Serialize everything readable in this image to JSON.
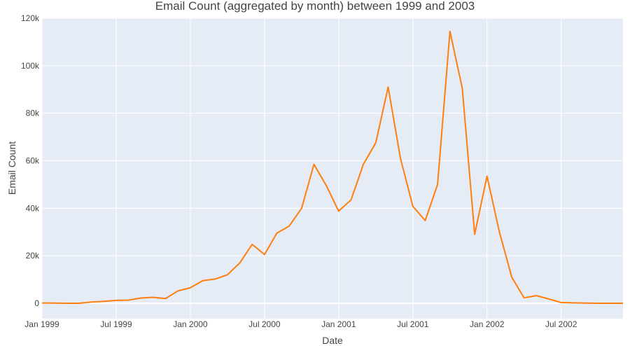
{
  "chart_data": {
    "type": "line",
    "title": "Email Count (aggregated by month) between 1999 and 2003",
    "xlabel": "Date",
    "ylabel": "Email Count",
    "xlim": [
      "1999-01",
      "2002-12"
    ],
    "ylim": [
      -6500,
      120000
    ],
    "x_ticks": [
      "Jan 1999",
      "Jul 1999",
      "Jan 2000",
      "Jul 2000",
      "Jan 2001",
      "Jul 2001",
      "Jan 2002",
      "Jul 2002"
    ],
    "y_ticks": [
      "0",
      "20k",
      "40k",
      "60k",
      "80k",
      "100k",
      "120k"
    ],
    "grid": true,
    "legend": "none",
    "colors": {
      "plot_bg": "#e5ecf6",
      "line": "#ff7f0e",
      "grid": "#ffffff"
    },
    "series": [
      {
        "x": [
          "1999-01",
          "1999-02",
          "1999-03",
          "1999-04",
          "1999-05",
          "1999-06",
          "1999-07",
          "1999-08",
          "1999-09",
          "1999-10",
          "1999-11",
          "1999-12",
          "2000-01",
          "2000-02",
          "2000-03",
          "2000-04",
          "2000-05",
          "2000-06",
          "2000-07",
          "2000-08",
          "2000-09",
          "2000-10",
          "2000-11",
          "2000-12",
          "2001-01",
          "2001-02",
          "2001-03",
          "2001-04",
          "2001-05",
          "2001-06",
          "2001-07",
          "2001-08",
          "2001-09",
          "2001-10",
          "2001-11",
          "2001-12",
          "2002-01",
          "2002-02",
          "2002-03",
          "2002-04",
          "2002-05",
          "2002-06",
          "2002-07",
          "2002-08",
          "2002-09",
          "2002-10",
          "2002-11",
          "2002-12"
        ],
        "values": [
          100,
          50,
          0,
          0,
          500,
          800,
          1200,
          1300,
          2200,
          2500,
          2000,
          5200,
          6500,
          9500,
          10200,
          12000,
          17000,
          24800,
          20500,
          29500,
          32500,
          40000,
          58500,
          49500,
          38800,
          43500,
          58500,
          67500,
          91000,
          61000,
          40800,
          34800,
          50000,
          114500,
          90500,
          29000,
          53500,
          30000,
          11000,
          2300,
          3200,
          1800,
          300,
          150,
          80,
          0,
          0,
          0
        ]
      }
    ]
  }
}
